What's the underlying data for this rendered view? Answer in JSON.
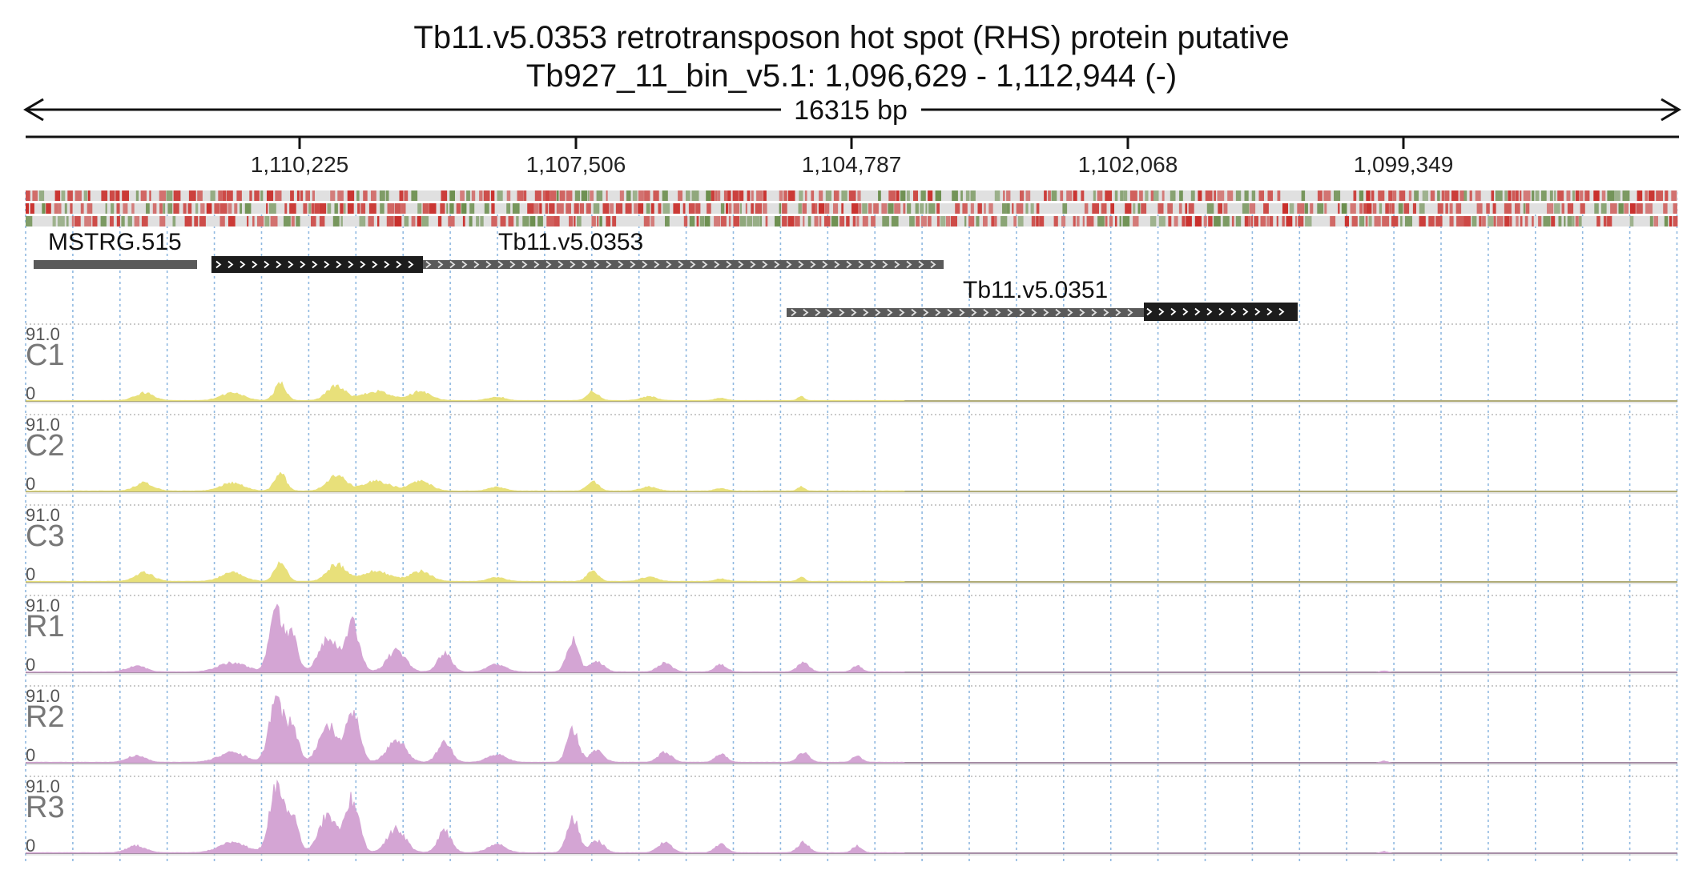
{
  "header": {
    "title": "Tb11.v5.0353  retrotransposon hot spot (RHS) protein  putative",
    "location": "Tb927_11_bin_v5.1: 1,096,629 - 1,112,944 (-)"
  },
  "ruler": {
    "span_label": "16315 bp",
    "ticks": [
      "1,110,225",
      "1,107,506",
      "1,104,787",
      "1,102,068",
      "1,099,349"
    ]
  },
  "genes": [
    {
      "name": "MSTRG.515",
      "type": "transcript"
    },
    {
      "name": "Tb11.v5.0353",
      "type": "gene"
    },
    {
      "name": "Tb11.v5.0351",
      "type": "gene"
    }
  ],
  "tracks": [
    {
      "name": "C1",
      "max": "91.0",
      "min": "0",
      "color": "#e8e07a",
      "profile": "low"
    },
    {
      "name": "C2",
      "max": "91.0",
      "min": "0",
      "color": "#e8e07a",
      "profile": "low"
    },
    {
      "name": "C3",
      "max": "91.0",
      "min": "0",
      "color": "#e8e07a",
      "profile": "low"
    },
    {
      "name": "R1",
      "max": "91.0",
      "min": "0",
      "color": "#d4a5d4",
      "profile": "high"
    },
    {
      "name": "R2",
      "max": "91.0",
      "min": "0",
      "color": "#d4a5d4",
      "profile": "high"
    },
    {
      "name": "R3",
      "max": "91.0",
      "min": "0",
      "color": "#d4a5d4",
      "profile": "high"
    }
  ],
  "colors": {
    "low_fill": "#e8e07a",
    "high_fill": "#d4a5d4",
    "grid": "#8fb8e0",
    "seq_red": "#c9302c",
    "seq_green": "#6b8e4e",
    "seq_bg": "#e0e0e0",
    "cds": "#1c1c1c",
    "utr": "#5a5a5a"
  }
}
